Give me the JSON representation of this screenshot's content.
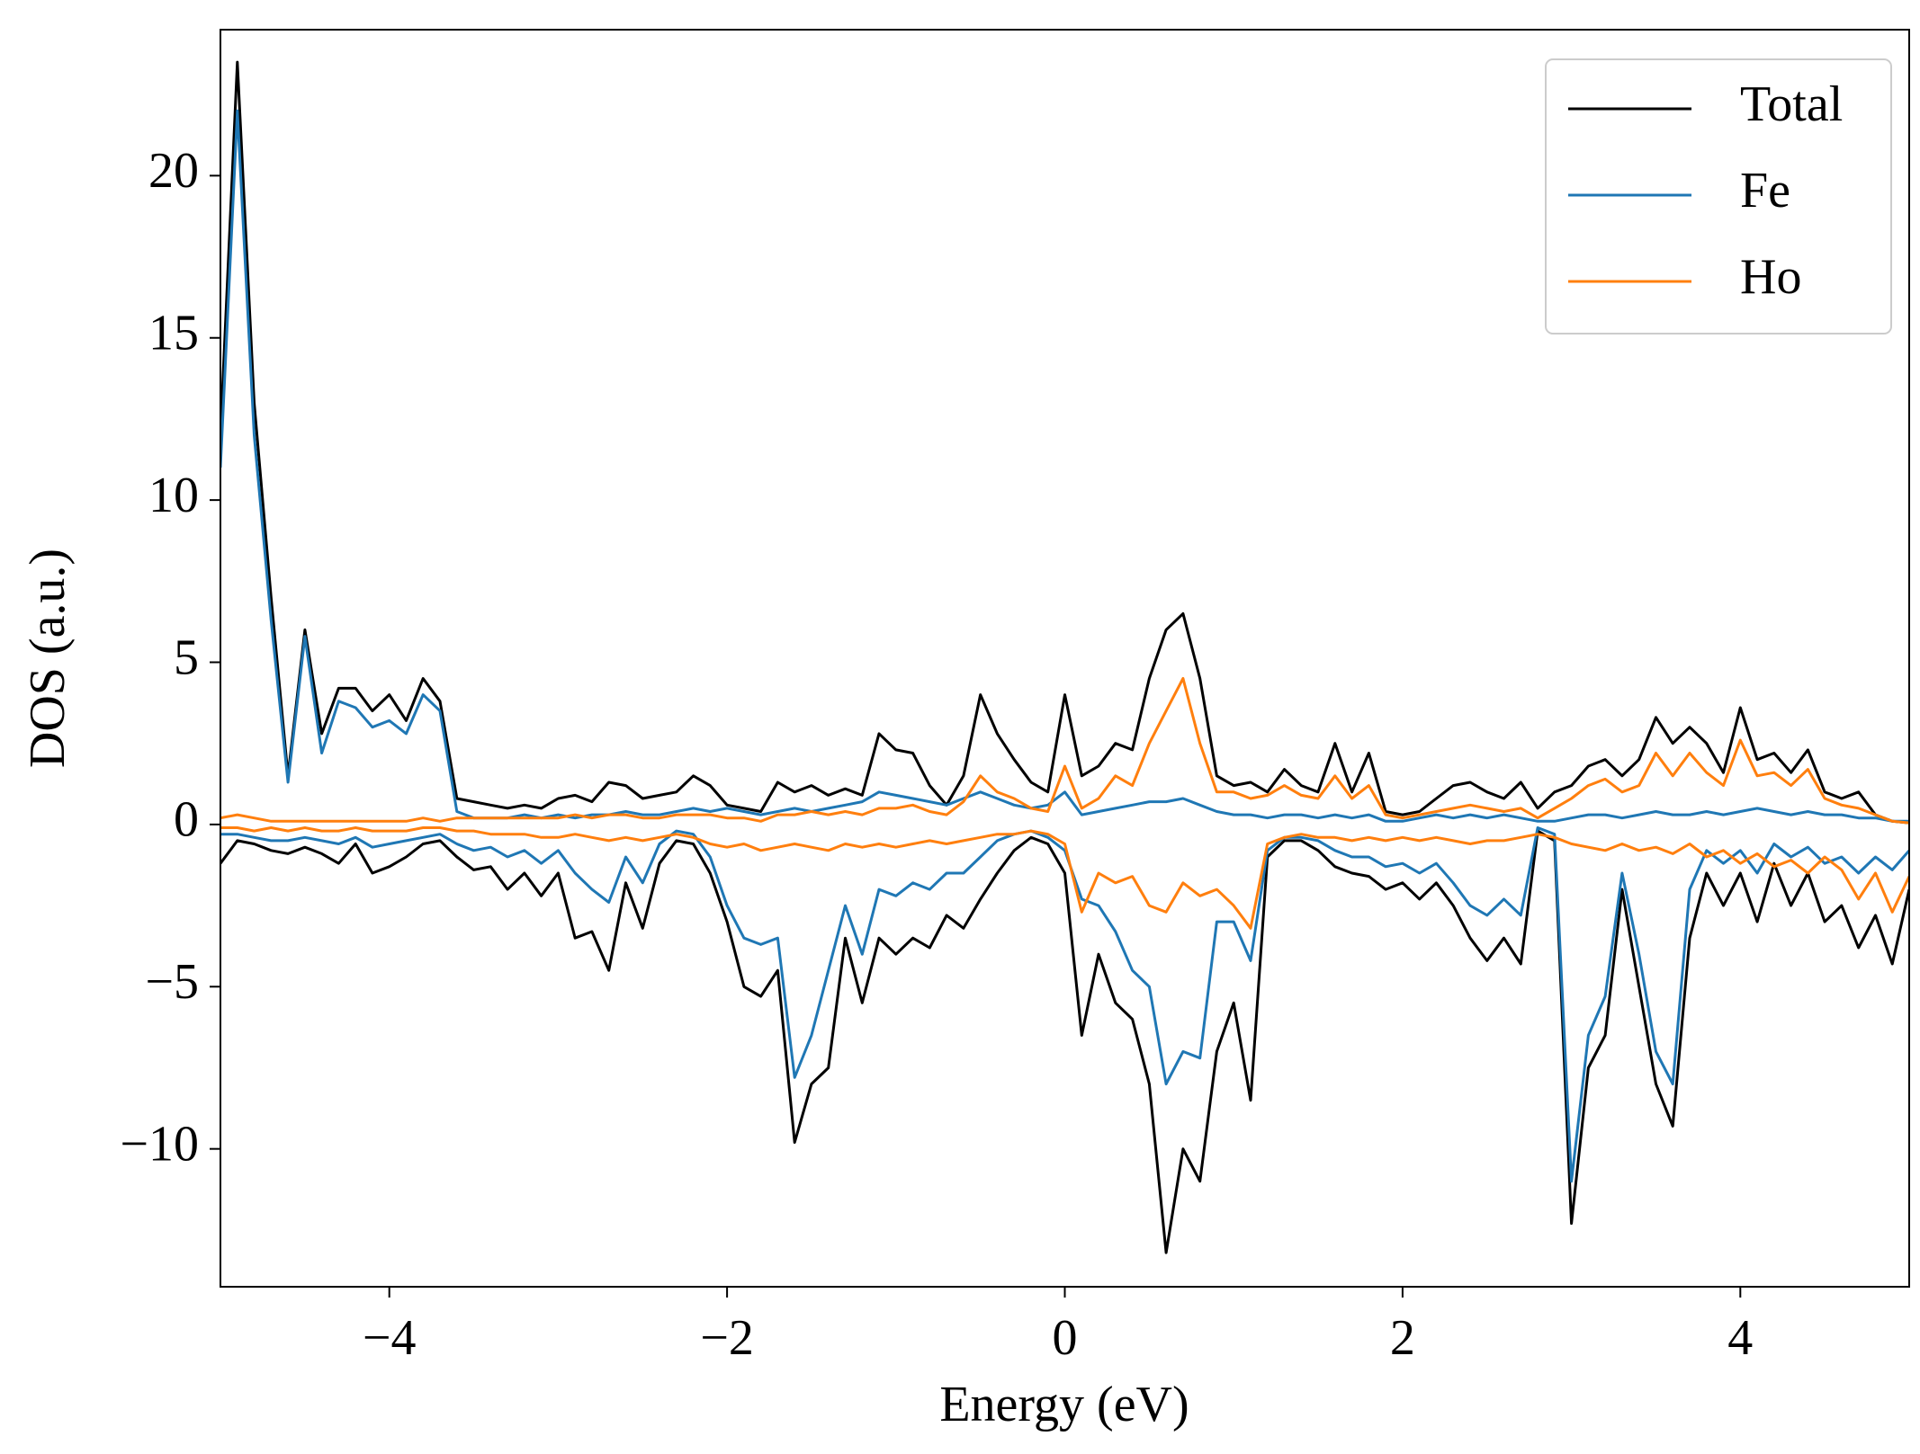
{
  "chart_data": {
    "type": "line",
    "xlabel": "Energy (eV)",
    "ylabel": "DOS (a.u.)",
    "x": [
      -5.0,
      -4.9,
      -4.8,
      -4.7,
      -4.6,
      -4.5,
      -4.4,
      -4.3,
      -4.2,
      -4.1,
      -4.0,
      -3.9,
      -3.8,
      -3.7,
      -3.6,
      -3.5,
      -3.4,
      -3.3,
      -3.2,
      -3.1,
      -3.0,
      -2.9,
      -2.8,
      -2.7,
      -2.6,
      -2.5,
      -2.4,
      -2.3,
      -2.2,
      -2.1,
      -2.0,
      -1.9,
      -1.8,
      -1.7,
      -1.6,
      -1.5,
      -1.4,
      -1.3,
      -1.2,
      -1.1,
      -1.0,
      -0.9,
      -0.8,
      -0.7,
      -0.6,
      -0.5,
      -0.4,
      -0.3,
      -0.2,
      -0.1,
      0.0,
      0.1,
      0.2,
      0.3,
      0.4,
      0.5,
      0.6,
      0.7,
      0.8,
      0.9,
      1.0,
      1.1,
      1.2,
      1.3,
      1.4,
      1.5,
      1.6,
      1.7,
      1.8,
      1.9,
      2.0,
      2.1,
      2.2,
      2.3,
      2.4,
      2.5,
      2.6,
      2.7,
      2.8,
      2.9,
      3.0,
      3.1,
      3.2,
      3.3,
      3.4,
      3.5,
      3.6,
      3.7,
      3.8,
      3.9,
      4.0,
      4.1,
      4.2,
      4.3,
      4.4,
      4.5,
      4.6,
      4.7,
      4.8,
      4.9,
      5.0
    ],
    "series": [
      {
        "name": "Total",
        "color": "#000000",
        "values": [
          12,
          23.5,
          13,
          7,
          1.5,
          6,
          2.8,
          4.2,
          4.2,
          3.5,
          4,
          3.2,
          4.5,
          3.8,
          0.8,
          0.7,
          0.6,
          0.5,
          0.6,
          0.5,
          0.8,
          0.9,
          0.7,
          1.3,
          1.2,
          0.8,
          0.9,
          1.0,
          1.5,
          1.2,
          0.6,
          0.5,
          0.4,
          1.3,
          1.0,
          1.2,
          0.9,
          1.1,
          0.9,
          2.8,
          2.3,
          2.2,
          1.2,
          0.6,
          1.5,
          4.0,
          2.8,
          2.0,
          1.3,
          1.0,
          4.0,
          1.5,
          1.8,
          2.5,
          2.3,
          4.5,
          6.0,
          6.5,
          4.5,
          1.5,
          1.2,
          1.3,
          1.0,
          1.7,
          1.2,
          1.0,
          2.5,
          1.0,
          2.2,
          0.4,
          0.3,
          0.4,
          0.8,
          1.2,
          1.3,
          1.0,
          0.8,
          1.3,
          0.5,
          1.0,
          1.2,
          1.8,
          2.0,
          1.5,
          2.0,
          3.3,
          2.5,
          3.0,
          2.5,
          1.6,
          3.6,
          2.0,
          2.2,
          1.6,
          2.3,
          1.0,
          0.8,
          1.0,
          0.3,
          0.1,
          0.05
        ],
        "values_down": [
          -1.2,
          -0.5,
          -0.6,
          -0.8,
          -0.9,
          -0.7,
          -0.9,
          -1.2,
          -0.6,
          -1.5,
          -1.3,
          -1.0,
          -0.6,
          -0.5,
          -1.0,
          -1.4,
          -1.3,
          -2.0,
          -1.5,
          -2.2,
          -1.5,
          -3.5,
          -3.3,
          -4.5,
          -1.8,
          -3.2,
          -1.2,
          -0.5,
          -0.6,
          -1.5,
          -3.0,
          -5.0,
          -5.3,
          -4.5,
          -9.8,
          -8.0,
          -7.5,
          -3.5,
          -5.5,
          -3.5,
          -4.0,
          -3.5,
          -3.8,
          -2.8,
          -3.2,
          -2.3,
          -1.5,
          -0.8,
          -0.4,
          -0.6,
          -1.5,
          -6.5,
          -4.0,
          -5.5,
          -6.0,
          -8.0,
          -13.2,
          -10.0,
          -11.0,
          -7.0,
          -5.5,
          -8.5,
          -1.0,
          -0.5,
          -0.5,
          -0.8,
          -1.3,
          -1.5,
          -1.6,
          -2.0,
          -1.8,
          -2.3,
          -1.8,
          -2.5,
          -3.5,
          -4.2,
          -3.5,
          -4.3,
          -0.2,
          -0.5,
          -12.3,
          -7.5,
          -6.5,
          -2.0,
          -5.0,
          -8.0,
          -9.3,
          -3.5,
          -1.5,
          -2.5,
          -1.5,
          -3.0,
          -1.2,
          -2.5,
          -1.5,
          -3.0,
          -2.5,
          -3.8,
          -2.8,
          -4.3,
          -2.0
        ]
      },
      {
        "name": "Fe",
        "color": "#1f77b4",
        "values": [
          11,
          22,
          12,
          6.3,
          1.3,
          5.8,
          2.2,
          3.8,
          3.6,
          3.0,
          3.2,
          2.8,
          4.0,
          3.5,
          0.4,
          0.2,
          0.2,
          0.2,
          0.3,
          0.2,
          0.3,
          0.2,
          0.3,
          0.3,
          0.4,
          0.3,
          0.3,
          0.4,
          0.5,
          0.4,
          0.5,
          0.4,
          0.3,
          0.4,
          0.5,
          0.4,
          0.5,
          0.6,
          0.7,
          1.0,
          0.9,
          0.8,
          0.7,
          0.6,
          0.8,
          1.0,
          0.8,
          0.6,
          0.5,
          0.6,
          1.0,
          0.3,
          0.4,
          0.5,
          0.6,
          0.7,
          0.7,
          0.8,
          0.6,
          0.4,
          0.3,
          0.3,
          0.2,
          0.3,
          0.3,
          0.2,
          0.3,
          0.2,
          0.3,
          0.1,
          0.1,
          0.2,
          0.3,
          0.2,
          0.3,
          0.2,
          0.3,
          0.2,
          0.1,
          0.1,
          0.2,
          0.3,
          0.3,
          0.2,
          0.3,
          0.4,
          0.3,
          0.3,
          0.4,
          0.3,
          0.4,
          0.5,
          0.4,
          0.3,
          0.4,
          0.3,
          0.3,
          0.2,
          0.2,
          0.1,
          0.1
        ],
        "values_down": [
          -0.3,
          -0.3,
          -0.4,
          -0.5,
          -0.5,
          -0.4,
          -0.5,
          -0.6,
          -0.4,
          -0.7,
          -0.6,
          -0.5,
          -0.4,
          -0.3,
          -0.6,
          -0.8,
          -0.7,
          -1.0,
          -0.8,
          -1.2,
          -0.8,
          -1.5,
          -2.0,
          -2.4,
          -1.0,
          -1.8,
          -0.6,
          -0.2,
          -0.3,
          -1.0,
          -2.5,
          -3.5,
          -3.7,
          -3.5,
          -7.8,
          -6.5,
          -4.5,
          -2.5,
          -4.0,
          -2.0,
          -2.2,
          -1.8,
          -2.0,
          -1.5,
          -1.5,
          -1.0,
          -0.5,
          -0.3,
          -0.2,
          -0.4,
          -0.8,
          -2.3,
          -2.5,
          -3.3,
          -4.5,
          -5.0,
          -8.0,
          -7.0,
          -7.2,
          -3.0,
          -3.0,
          -4.2,
          -0.8,
          -0.4,
          -0.4,
          -0.5,
          -0.8,
          -1.0,
          -1.0,
          -1.3,
          -1.2,
          -1.5,
          -1.2,
          -1.8,
          -2.5,
          -2.8,
          -2.3,
          -2.8,
          -0.1,
          -0.3,
          -11.0,
          -6.5,
          -5.3,
          -1.5,
          -4.0,
          -7.0,
          -8.0,
          -2.0,
          -0.8,
          -1.2,
          -0.8,
          -1.5,
          -0.6,
          -1.0,
          -0.7,
          -1.2,
          -1.0,
          -1.5,
          -1.0,
          -1.4,
          -0.8
        ]
      },
      {
        "name": "Ho",
        "color": "#ff7f0e",
        "values": [
          0.2,
          0.3,
          0.2,
          0.1,
          0.1,
          0.1,
          0.1,
          0.1,
          0.1,
          0.1,
          0.1,
          0.1,
          0.2,
          0.1,
          0.2,
          0.2,
          0.2,
          0.2,
          0.2,
          0.2,
          0.2,
          0.3,
          0.2,
          0.3,
          0.3,
          0.2,
          0.2,
          0.3,
          0.3,
          0.3,
          0.2,
          0.2,
          0.1,
          0.3,
          0.3,
          0.4,
          0.3,
          0.4,
          0.3,
          0.5,
          0.5,
          0.6,
          0.4,
          0.3,
          0.7,
          1.5,
          1.0,
          0.8,
          0.5,
          0.4,
          1.8,
          0.5,
          0.8,
          1.5,
          1.2,
          2.5,
          3.5,
          4.5,
          2.5,
          1.0,
          1.0,
          0.8,
          0.9,
          1.2,
          0.9,
          0.8,
          1.5,
          0.8,
          1.2,
          0.3,
          0.2,
          0.3,
          0.4,
          0.5,
          0.6,
          0.5,
          0.4,
          0.5,
          0.2,
          0.5,
          0.8,
          1.2,
          1.4,
          1.0,
          1.2,
          2.2,
          1.5,
          2.2,
          1.6,
          1.2,
          2.6,
          1.5,
          1.6,
          1.2,
          1.7,
          0.8,
          0.6,
          0.5,
          0.3,
          0.1,
          0.05
        ],
        "values_down": [
          -0.1,
          -0.1,
          -0.2,
          -0.1,
          -0.2,
          -0.1,
          -0.2,
          -0.2,
          -0.1,
          -0.2,
          -0.2,
          -0.2,
          -0.1,
          -0.1,
          -0.2,
          -0.2,
          -0.3,
          -0.3,
          -0.3,
          -0.4,
          -0.4,
          -0.3,
          -0.4,
          -0.5,
          -0.4,
          -0.5,
          -0.4,
          -0.3,
          -0.4,
          -0.6,
          -0.7,
          -0.6,
          -0.8,
          -0.7,
          -0.6,
          -0.7,
          -0.8,
          -0.6,
          -0.7,
          -0.6,
          -0.7,
          -0.6,
          -0.5,
          -0.6,
          -0.5,
          -0.4,
          -0.3,
          -0.3,
          -0.2,
          -0.3,
          -0.6,
          -2.7,
          -1.5,
          -1.8,
          -1.6,
          -2.5,
          -2.7,
          -1.8,
          -2.2,
          -2.0,
          -2.5,
          -3.2,
          -0.6,
          -0.4,
          -0.3,
          -0.4,
          -0.4,
          -0.5,
          -0.4,
          -0.5,
          -0.4,
          -0.5,
          -0.4,
          -0.5,
          -0.6,
          -0.5,
          -0.5,
          -0.4,
          -0.3,
          -0.4,
          -0.6,
          -0.7,
          -0.8,
          -0.6,
          -0.8,
          -0.7,
          -0.9,
          -0.6,
          -1.0,
          -0.8,
          -1.2,
          -0.9,
          -1.3,
          -1.1,
          -1.5,
          -1.0,
          -1.4,
          -2.3,
          -1.5,
          -2.7,
          -1.6
        ]
      }
    ],
    "xlim": [
      -5,
      5
    ],
    "ylim": [
      -14.25,
      24.5
    ],
    "xticks": [
      {
        "value": -4,
        "label": "−4"
      },
      {
        "value": -2,
        "label": "−2"
      },
      0,
      2,
      4
    ],
    "yticks": [
      {
        "value": -10,
        "label": "−10"
      },
      {
        "value": -5,
        "label": "−5"
      },
      0,
      5,
      10,
      15,
      20
    ],
    "grid": false,
    "legend": "upper right"
  }
}
